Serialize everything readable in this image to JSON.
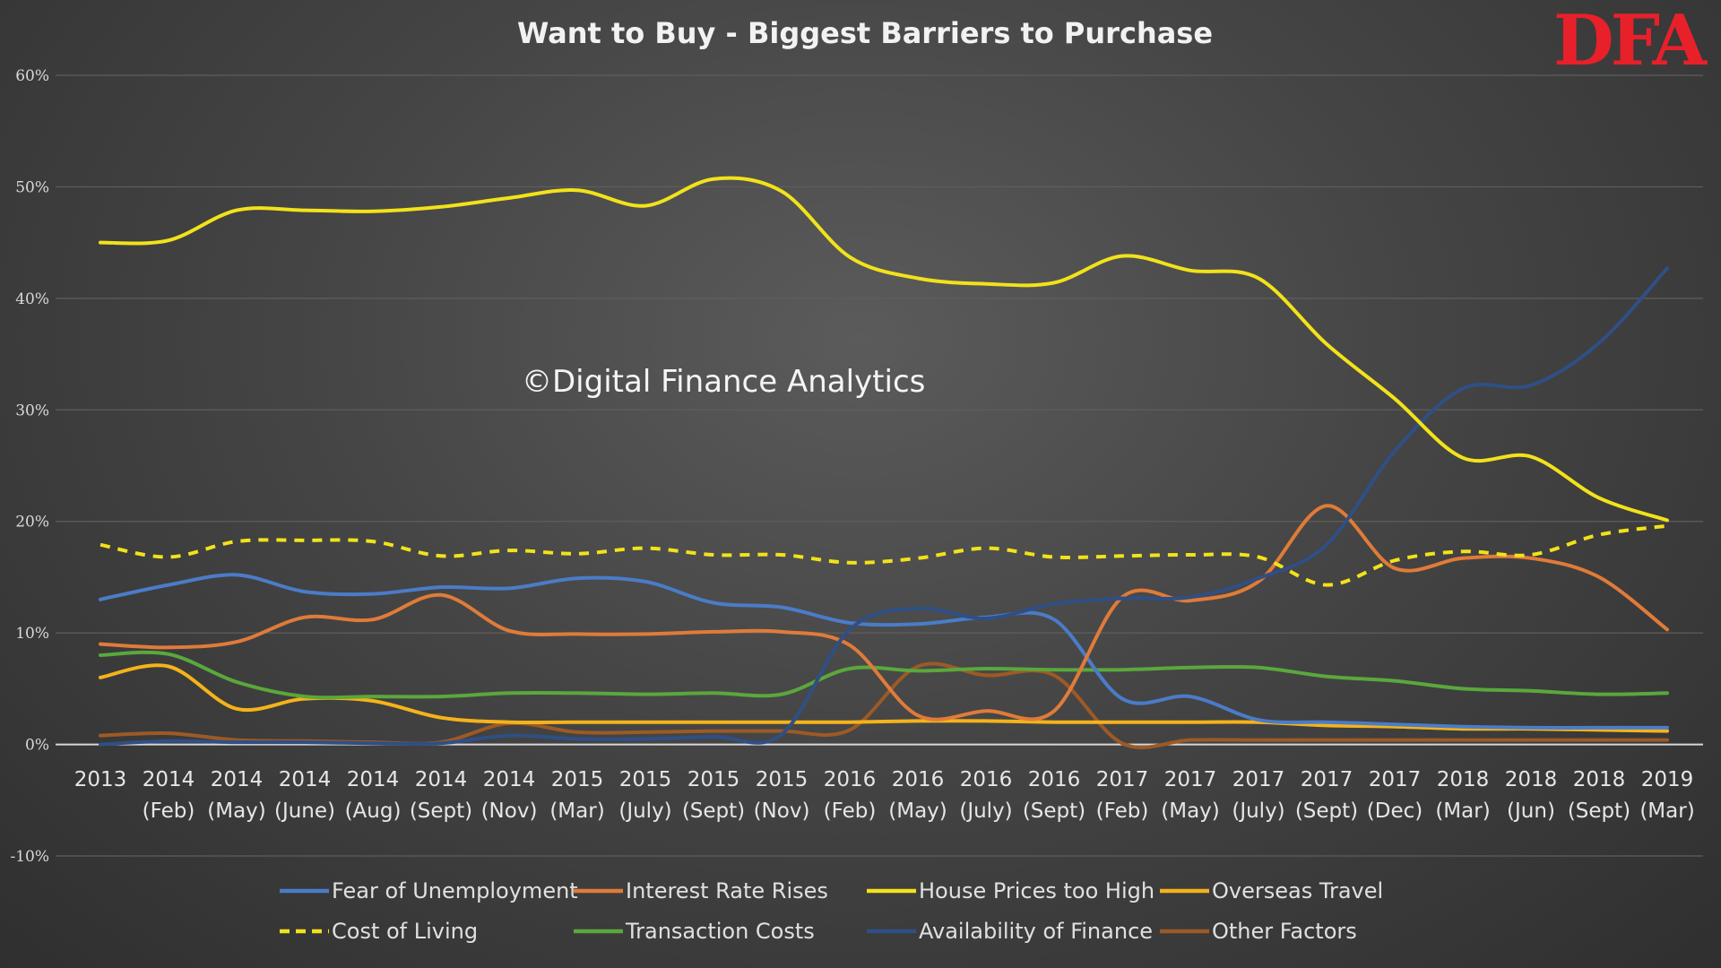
{
  "logo": {
    "text": "DFA",
    "color": "#e8202a"
  },
  "watermark": "©Digital Finance Analytics",
  "chart_data": {
    "type": "line",
    "title": "Want to Buy - Biggest Barriers to Purchase",
    "xlabel": "",
    "ylabel": "",
    "ylim": [
      -10,
      60
    ],
    "y_ticks": [
      "-10%",
      "0%",
      "10%",
      "20%",
      "30%",
      "40%",
      "50%",
      "60%"
    ],
    "grid": true,
    "legend_position": "bottom",
    "categories": [
      [
        "2013",
        ""
      ],
      [
        "2014",
        "(Feb)"
      ],
      [
        "2014",
        "(May)"
      ],
      [
        "2014",
        "(June)"
      ],
      [
        "2014",
        "(Aug)"
      ],
      [
        "2014",
        "(Sept)"
      ],
      [
        "2014",
        "(Nov)"
      ],
      [
        "2015",
        "(Mar)"
      ],
      [
        "2015",
        "(July)"
      ],
      [
        "2015",
        "(Sept)"
      ],
      [
        "2015",
        "(Nov)"
      ],
      [
        "2016",
        "(Feb)"
      ],
      [
        "2016",
        "(May)"
      ],
      [
        "2016",
        "(July)"
      ],
      [
        "2016",
        "(Sept)"
      ],
      [
        "2017",
        "(Feb)"
      ],
      [
        "2017",
        "(May)"
      ],
      [
        "2017",
        "(July)"
      ],
      [
        "2017",
        "(Sept)"
      ],
      [
        "2017",
        "(Dec)"
      ],
      [
        "2018",
        "(Mar)"
      ],
      [
        "2018",
        "(Jun)"
      ],
      [
        "2018",
        "(Sept)"
      ],
      [
        "2019",
        "(Mar)"
      ]
    ],
    "series": [
      {
        "name": "Fear of Unemployment",
        "color": "#4a7cc8",
        "dashed": false,
        "values": [
          13,
          14.3,
          15.2,
          13.7,
          13.5,
          14.1,
          14,
          14.9,
          14.6,
          12.7,
          12.3,
          10.9,
          10.8,
          11.4,
          11.2,
          4.1,
          4.3,
          2.2,
          2,
          1.8,
          1.6,
          1.5,
          1.5,
          1.5
        ]
      },
      {
        "name": "Interest Rate Rises",
        "color": "#e07b39",
        "dashed": false,
        "values": [
          9,
          8.7,
          9.2,
          11.4,
          11.2,
          13.4,
          10.2,
          9.9,
          9.9,
          10.1,
          10.1,
          8.9,
          2.6,
          3,
          3,
          13.2,
          12.9,
          14.6,
          21.4,
          15.8,
          16.7,
          16.7,
          15,
          10.3
        ]
      },
      {
        "name": "House Prices too High",
        "color": "#f2e21a",
        "dashed": false,
        "values": [
          45,
          45.2,
          47.9,
          47.9,
          47.8,
          48.2,
          49,
          49.7,
          48.3,
          50.7,
          49.6,
          43.7,
          41.8,
          41.3,
          41.4,
          43.8,
          42.5,
          41.8,
          35.9,
          31,
          25.7,
          25.8,
          22.1,
          20.1
        ]
      },
      {
        "name": "Overseas Travel",
        "color": "#f5b31a",
        "dashed": false,
        "values": [
          6,
          7,
          3.2,
          4.1,
          3.9,
          2.4,
          2,
          2,
          2,
          2,
          2,
          2,
          2.1,
          2.1,
          2,
          2,
          2,
          2,
          1.7,
          1.6,
          1.4,
          1.4,
          1.3,
          1.2
        ]
      },
      {
        "name": "Cost of Living",
        "color": "#f2e21a",
        "dashed": true,
        "values": [
          17.9,
          16.8,
          18.2,
          18.3,
          18.2,
          16.9,
          17.4,
          17.1,
          17.6,
          17,
          17,
          16.3,
          16.7,
          17.6,
          16.8,
          16.9,
          17,
          16.8,
          14.3,
          16.5,
          17.3,
          17,
          18.8,
          19.6
        ]
      },
      {
        "name": "Transaction Costs",
        "color": "#5aa83c",
        "dashed": false,
        "values": [
          8,
          8.1,
          5.6,
          4.3,
          4.3,
          4.3,
          4.6,
          4.6,
          4.5,
          4.6,
          4.5,
          6.8,
          6.6,
          6.8,
          6.7,
          6.7,
          6.9,
          6.9,
          6.1,
          5.7,
          5,
          4.8,
          4.5,
          4.6
        ]
      },
      {
        "name": "Availability of Finance",
        "color": "#2f4f85",
        "dashed": false,
        "values": [
          0,
          0.3,
          0.2,
          0.2,
          0.1,
          0.1,
          0.8,
          0.5,
          0.5,
          0.7,
          0.9,
          10.3,
          12.2,
          11.3,
          12.6,
          13.1,
          13.2,
          14.9,
          17.9,
          26.3,
          31.9,
          32.2,
          36,
          42.7
        ]
      },
      {
        "name": "Other Factors",
        "color": "#9c5a26",
        "dashed": false,
        "values": [
          0.8,
          1,
          0.4,
          0.3,
          0.2,
          0.2,
          1.9,
          1.1,
          1.1,
          1.2,
          1.2,
          1.3,
          7,
          6.2,
          6.2,
          0.1,
          0.4,
          0.4,
          0.4,
          0.4,
          0.4,
          0.4,
          0.4,
          0.4
        ]
      }
    ],
    "legend_order": [
      "Fear of Unemployment",
      "Interest Rate Rises",
      "House Prices too High",
      "Overseas Travel",
      "Cost of Living",
      "Transaction Costs",
      "Availability of Finance",
      "Other Factors"
    ]
  }
}
